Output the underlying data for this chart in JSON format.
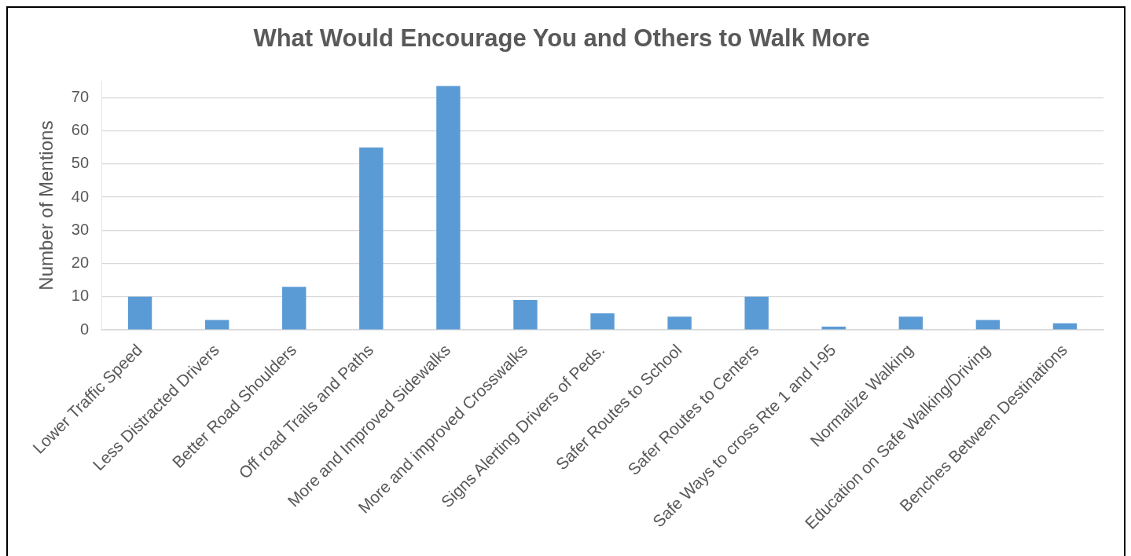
{
  "chart_data": {
    "type": "bar",
    "title": "What Would Encourage You and Others to Walk More",
    "ylabel": "Number of Mentions",
    "categories": [
      "Lower Traffic Speed",
      "Less Distracted Drivers",
      "Better Road Shoulders",
      "Off road Trails and Paths",
      "More and Improved Sidewalks",
      "More and improved Crosswalks",
      "Signs Alerting Drivers of Peds.",
      "Safer Routes to School",
      "Safer Routes to Centers",
      "Safe Ways to cross Rte 1 and I-95",
      "Normalize Walking",
      "Education on Safe Walking/Driving",
      "Benches Between Destinations"
    ],
    "values": [
      10,
      3,
      13,
      55,
      73.5,
      9,
      5,
      4,
      10,
      1,
      4,
      3,
      2
    ],
    "color": "#5b9bd5",
    "ylim": [
      0,
      75
    ],
    "yticks": [
      0,
      10,
      20,
      30,
      40,
      50,
      60,
      70
    ],
    "grid": "y"
  }
}
